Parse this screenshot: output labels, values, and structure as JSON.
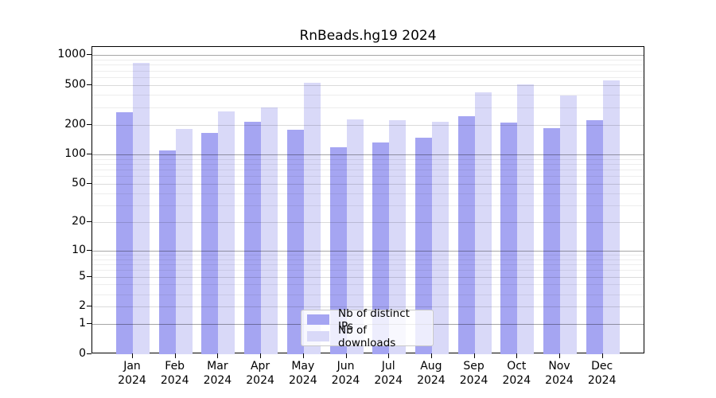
{
  "window": {
    "background": "#ffffff"
  },
  "chart_data": {
    "type": "bar",
    "title": "RnBeads.hg19 2024",
    "categories": [
      "Jan",
      "Feb",
      "Mar",
      "Apr",
      "May",
      "Jun",
      "Jul",
      "Aug",
      "Sep",
      "Oct",
      "Nov",
      "Dec"
    ],
    "x_year_label": "2024",
    "series": [
      {
        "name": "Nb of distinct IPs",
        "color": "#a5a5f2",
        "values": [
          265,
          110,
          165,
          215,
          178,
          118,
          133,
          147,
          245,
          210,
          183,
          222
        ]
      },
      {
        "name": "Nb of downloads",
        "color": "#d9d9f8",
        "values": [
          840,
          180,
          270,
          300,
          525,
          225,
          222,
          215,
          425,
          510,
          390,
          560
        ]
      }
    ],
    "y_axis": {
      "scale": "log10(1+x)",
      "tick_labels": [
        0,
        1,
        2,
        5,
        10,
        20,
        50,
        100,
        200,
        500,
        1000
      ],
      "range": [
        0,
        1000
      ]
    },
    "grid": "on",
    "grid_colors": {
      "power_of_ten": "rgba(0,0,0,0.35)",
      "labeled_tick": "rgba(0,0,0,0.14)",
      "minor": "rgba(0,0,0,0.07)"
    },
    "legend": {
      "position": "bottom-center-inside",
      "entries": [
        "Nb of distinct IPs",
        "Nb of downloads"
      ]
    }
  }
}
